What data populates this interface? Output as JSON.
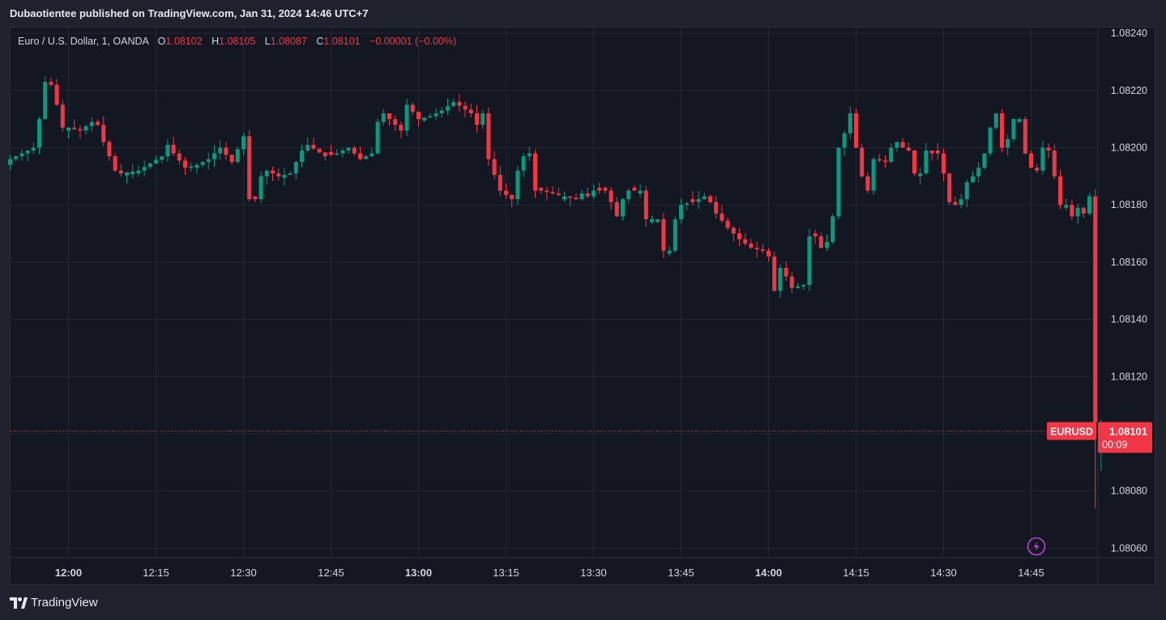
{
  "publisher_line": "Dubaotientee published on TradingView.com, Jan 31, 2024 14:46 UTC+7",
  "legend": {
    "symbol": "Euro / U.S. Dollar, 1, OANDA",
    "o_label": "O",
    "o_value": "1.08102",
    "h_label": "H",
    "h_value": "1.08105",
    "l_label": "L",
    "l_value": "1.08087",
    "c_label": "C",
    "c_value": "1.08101",
    "change": "−0.00001 (−0.00%)"
  },
  "price_badge": {
    "symbol": "EURUSD",
    "price": "1.08101",
    "countdown": "00:09"
  },
  "footer_brand": "TradingView",
  "colors": {
    "up": "#089981",
    "down": "#f23645",
    "background": "#131722",
    "frame": "#1e222d",
    "grid": "#232732",
    "text": "#d1d4dc"
  },
  "icons": {
    "brand": "tradingview-logo-icon",
    "lightning": "lightning-icon"
  },
  "chart_data": {
    "type": "candlestick",
    "symbol": "EURUSD",
    "interval": "1",
    "y_ticks": [
      "1.08240",
      "1.08220",
      "1.08200",
      "1.08180",
      "1.08160",
      "1.08140",
      "1.08120",
      "1.08100",
      "1.08080",
      "1.08060"
    ],
    "ylim": [
      1.08057,
      1.08242
    ],
    "x_ticks": [
      {
        "label": "12:00",
        "minute": 0,
        "bold": true
      },
      {
        "label": "12:15",
        "minute": 15,
        "bold": false
      },
      {
        "label": "12:30",
        "minute": 30,
        "bold": false
      },
      {
        "label": "12:45",
        "minute": 45,
        "bold": false
      },
      {
        "label": "13:00",
        "minute": 60,
        "bold": true
      },
      {
        "label": "13:15",
        "minute": 75,
        "bold": false
      },
      {
        "label": "13:30",
        "minute": 90,
        "bold": false
      },
      {
        "label": "13:45",
        "minute": 105,
        "bold": false
      },
      {
        "label": "14:00",
        "minute": 120,
        "bold": true
      },
      {
        "label": "14:15",
        "minute": 135,
        "bold": false
      },
      {
        "label": "14:30",
        "minute": 150,
        "bold": false
      },
      {
        "label": "14:45",
        "minute": 165,
        "bold": false
      }
    ],
    "first_minute": -10,
    "last_price": 1.08101,
    "grid": true,
    "anchors": [
      [
        -10,
        1.08196
      ],
      [
        -6,
        1.082
      ],
      [
        -5,
        1.0821
      ],
      [
        -4,
        1.08223
      ],
      [
        -3,
        1.08222
      ],
      [
        -2,
        1.08215
      ],
      [
        -1,
        1.08207
      ],
      [
        0,
        1.08207
      ],
      [
        2,
        1.08206
      ],
      [
        4,
        1.08209
      ],
      [
        5,
        1.08208
      ],
      [
        6,
        1.08202
      ],
      [
        8,
        1.08192
      ],
      [
        9,
        1.08191
      ],
      [
        12,
        1.08192
      ],
      [
        16,
        1.08197
      ],
      [
        17,
        1.08201
      ],
      [
        18,
        1.08198
      ],
      [
        20,
        1.08193
      ],
      [
        22,
        1.08194
      ],
      [
        24,
        1.08196
      ],
      [
        26,
        1.082
      ],
      [
        28,
        1.08195
      ],
      [
        30,
        1.08204
      ],
      [
        31,
        1.08182
      ],
      [
        32,
        1.08182
      ],
      [
        33,
        1.0819
      ],
      [
        34,
        1.08192
      ],
      [
        36,
        1.0819
      ],
      [
        38,
        1.08191
      ],
      [
        40,
        1.08199
      ],
      [
        41,
        1.08201
      ],
      [
        44,
        1.08197
      ],
      [
        46,
        1.08198
      ],
      [
        48,
        1.082
      ],
      [
        50,
        1.08196
      ],
      [
        52,
        1.08198
      ],
      [
        53,
        1.08209
      ],
      [
        54,
        1.08212
      ],
      [
        57,
        1.08206
      ],
      [
        58,
        1.08215
      ],
      [
        60,
        1.0821
      ],
      [
        62,
        1.08211
      ],
      [
        64,
        1.08213
      ],
      [
        66,
        1.08216
      ],
      [
        69,
        1.08212
      ],
      [
        70,
        1.08208
      ],
      [
        71,
        1.08212
      ],
      [
        72,
        1.08196
      ],
      [
        74,
        1.08185
      ],
      [
        76,
        1.08182
      ],
      [
        77,
        1.08192
      ],
      [
        78,
        1.08197
      ],
      [
        79,
        1.08198
      ],
      [
        80,
        1.08185
      ],
      [
        81,
        1.08185
      ],
      [
        83,
        1.08184
      ],
      [
        85,
        1.08183
      ],
      [
        87,
        1.08182
      ],
      [
        88,
        1.08184
      ],
      [
        89,
        1.08183
      ],
      [
        90,
        1.08185
      ],
      [
        92,
        1.08185
      ],
      [
        93,
        1.08181
      ],
      [
        94,
        1.08176
      ],
      [
        95,
        1.08182
      ],
      [
        96,
        1.08185
      ],
      [
        98,
        1.08185
      ],
      [
        99,
        1.08175
      ],
      [
        101,
        1.08175
      ],
      [
        102,
        1.08164
      ],
      [
        103,
        1.08164
      ],
      [
        104,
        1.08175
      ],
      [
        105,
        1.0818
      ],
      [
        107,
        1.08181
      ],
      [
        109,
        1.08183
      ],
      [
        110,
        1.08181
      ],
      [
        111,
        1.08177
      ],
      [
        113,
        1.08172
      ],
      [
        114,
        1.0817
      ],
      [
        115,
        1.08168
      ],
      [
        117,
        1.08165
      ],
      [
        119,
        1.08164
      ],
      [
        120,
        1.08162
      ],
      [
        121,
        1.0815
      ],
      [
        122,
        1.08158
      ],
      [
        123,
        1.08155
      ],
      [
        124,
        1.08151
      ],
      [
        126,
        1.08152
      ],
      [
        127,
        1.08169
      ],
      [
        128,
        1.08169
      ],
      [
        129,
        1.08165
      ],
      [
        130,
        1.08167
      ],
      [
        131,
        1.08176
      ],
      [
        132,
        1.082
      ],
      [
        133,
        1.08205
      ],
      [
        134,
        1.08212
      ],
      [
        135,
        1.082
      ],
      [
        136,
        1.0819
      ],
      [
        137,
        1.08185
      ],
      [
        138,
        1.08196
      ],
      [
        140,
        1.08195
      ],
      [
        141,
        1.082
      ],
      [
        142,
        1.08202
      ],
      [
        143,
        1.082
      ],
      [
        144,
        1.08199
      ],
      [
        145,
        1.08191
      ],
      [
        146,
        1.08191
      ],
      [
        147,
        1.08199
      ],
      [
        148,
        1.08198
      ],
      [
        149,
        1.08198
      ],
      [
        150,
        1.08191
      ],
      [
        151,
        1.08181
      ],
      [
        152,
        1.0818
      ],
      [
        153,
        1.08182
      ],
      [
        154,
        1.08188
      ],
      [
        155,
        1.0819
      ],
      [
        156,
        1.08193
      ],
      [
        157,
        1.08198
      ],
      [
        158,
        1.08207
      ],
      [
        159,
        1.08212
      ],
      [
        160,
        1.082
      ],
      [
        161,
        1.08203
      ],
      [
        162,
        1.0821
      ],
      [
        163,
        1.0821
      ],
      [
        164,
        1.08198
      ],
      [
        165,
        1.08193
      ],
      [
        166,
        1.08192
      ],
      [
        167,
        1.082
      ],
      [
        168,
        1.08199
      ],
      [
        169,
        1.0819
      ],
      [
        170,
        1.0818
      ],
      [
        171,
        1.0818
      ],
      [
        172,
        1.08176
      ],
      [
        173,
        1.08179
      ],
      [
        174,
        1.08177
      ],
      [
        175,
        1.08183
      ],
      [
        176,
        1.08104
      ],
      [
        177,
        1.08102
      ]
    ]
  }
}
